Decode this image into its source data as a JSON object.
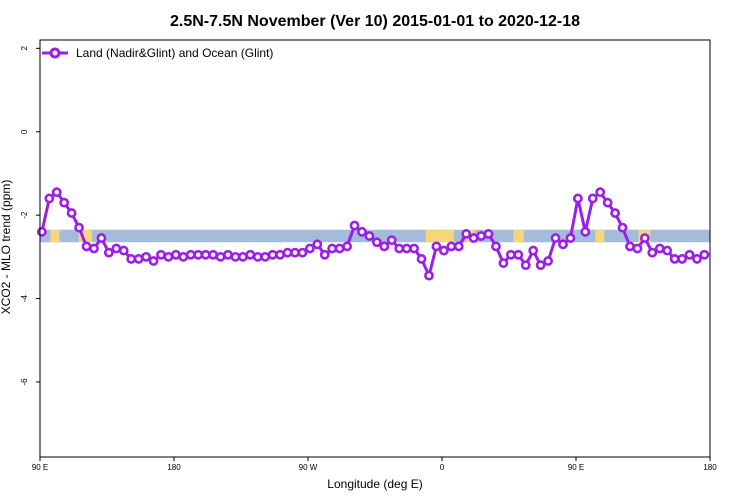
{
  "chart_data": {
    "type": "line",
    "title": "2.5N-7.5N November (Ver 10)   2015-01-01 to 2020-12-18",
    "xlabel": "Longitude (deg E)",
    "ylabel": "XCO2 - MLO trend (ppm)",
    "xlim": [
      90,
      540
    ],
    "ylim": [
      -7.8,
      2.2
    ],
    "x_ticks": [
      {
        "value": 90,
        "label": "90 E"
      },
      {
        "value": 180,
        "label": "180"
      },
      {
        "value": 270,
        "label": "90 W"
      },
      {
        "value": 360,
        "label": "0"
      },
      {
        "value": 450,
        "label": "90 E"
      },
      {
        "value": 540,
        "label": "180"
      }
    ],
    "y_ticks": [
      {
        "value": 2,
        "label": "2"
      },
      {
        "value": 0,
        "label": "0"
      },
      {
        "value": -2,
        "label": "-2"
      },
      {
        "value": -4,
        "label": "-4"
      },
      {
        "value": -6,
        "label": "-6"
      }
    ],
    "legend": {
      "position": "top-left"
    },
    "land_band": {
      "y_range": [
        -2.65,
        -2.35
      ],
      "ocean_color": "#a4bcdb",
      "land_color": "#f7d57a"
    },
    "land_segments": [
      [
        97,
        103
      ],
      [
        116,
        125
      ],
      [
        349,
        368
      ],
      [
        376,
        382
      ],
      [
        408,
        415
      ],
      [
        463,
        469
      ],
      [
        492,
        500
      ]
    ],
    "series": [
      {
        "name": "Land (Nadir&Glint) and Ocean (Glint)",
        "color": "#9a1fe8",
        "x": [
          91.25,
          96.25,
          101.25,
          106.25,
          111.25,
          116.25,
          121.25,
          126.25,
          131.25,
          136.25,
          141.25,
          146.25,
          151.25,
          156.25,
          161.25,
          166.25,
          171.25,
          176.25,
          181.25,
          186.25,
          191.25,
          196.25,
          201.25,
          206.25,
          211.25,
          216.25,
          221.25,
          226.25,
          231.25,
          236.25,
          241.25,
          246.25,
          251.25,
          256.25,
          261.25,
          266.25,
          271.25,
          276.25,
          281.25,
          286.25,
          291.25,
          296.25,
          301.25,
          306.25,
          311.25,
          316.25,
          321.25,
          326.25,
          331.25,
          336.25,
          341.25,
          346.25,
          351.25,
          356.25,
          361.25,
          366.25,
          371.25,
          376.25,
          381.25,
          386.25,
          391.25,
          396.25,
          401.25,
          406.25,
          411.25,
          416.25,
          421.25,
          426.25,
          431.25,
          436.25,
          441.25,
          446.25,
          451.25,
          456.25,
          461.25,
          466.25,
          471.25,
          476.25,
          481.25,
          486.25,
          491.25,
          496.25,
          501.25,
          506.25,
          511.25,
          516.25,
          521.25,
          526.25,
          531.25,
          536.25
        ],
        "values": [
          -2.4,
          -1.6,
          -1.45,
          -1.7,
          -1.95,
          -2.3,
          -2.75,
          -2.8,
          -2.55,
          -2.9,
          -2.8,
          -2.85,
          -3.05,
          -3.05,
          -3.0,
          -3.1,
          -2.95,
          -3.0,
          -2.95,
          -3.0,
          -2.95,
          -2.95,
          -2.95,
          -2.95,
          -3.0,
          -2.95,
          -3.0,
          -3.0,
          -2.95,
          -3.0,
          -3.0,
          -2.95,
          -2.95,
          -2.9,
          -2.9,
          -2.9,
          -2.8,
          -2.7,
          -2.95,
          -2.8,
          -2.8,
          -2.75,
          -2.25,
          -2.4,
          -2.5,
          -2.65,
          -2.75,
          -2.6,
          -2.8,
          -2.8,
          -2.8,
          -3.05,
          -3.45,
          -2.75,
          -2.85,
          -2.75,
          -2.75,
          -2.45,
          -2.55,
          -2.5,
          -2.45,
          -2.75,
          -3.15,
          -2.95,
          -2.95,
          -3.2,
          -2.85,
          -3.2,
          -3.1,
          -2.55,
          -2.7,
          -2.55,
          -1.6,
          -2.4,
          -1.6,
          -1.45,
          -1.7,
          -1.95,
          -2.3,
          -2.75,
          -2.8,
          -2.55,
          -2.9,
          -2.8,
          -2.85,
          -3.05,
          -3.05,
          -2.95,
          -3.05,
          -2.95
        ]
      }
    ]
  }
}
